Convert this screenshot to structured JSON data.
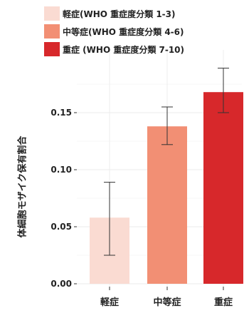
{
  "chart_data": {
    "type": "bar",
    "categories": [
      "軽症",
      "中等症",
      "重症"
    ],
    "values": [
      0.058,
      0.138,
      0.168
    ],
    "error_low": [
      0.025,
      0.122,
      0.15
    ],
    "error_high": [
      0.089,
      0.155,
      0.189
    ],
    "colors": [
      "#fadbd2",
      "#f28f74",
      "#d7282b"
    ],
    "ylabel": "体細胞モザイク保有割合",
    "ylim": [
      0,
      0.19
    ],
    "yticks": [
      0.0,
      0.05,
      0.1,
      0.15
    ],
    "ytick_labels": [
      "0.00",
      "0.05",
      "0.10",
      "0.15"
    ],
    "legend_position": "top",
    "legend": [
      {
        "label": "軽症(WHO 重症度分類 1-3)",
        "color": "#fadbd2"
      },
      {
        "label": "中等症(WHO 重症度分類 4-6)",
        "color": "#f28f74"
      },
      {
        "label": "重症 (WHO 重症度分類 7-10)",
        "color": "#d7282b"
      }
    ],
    "grid": true
  }
}
